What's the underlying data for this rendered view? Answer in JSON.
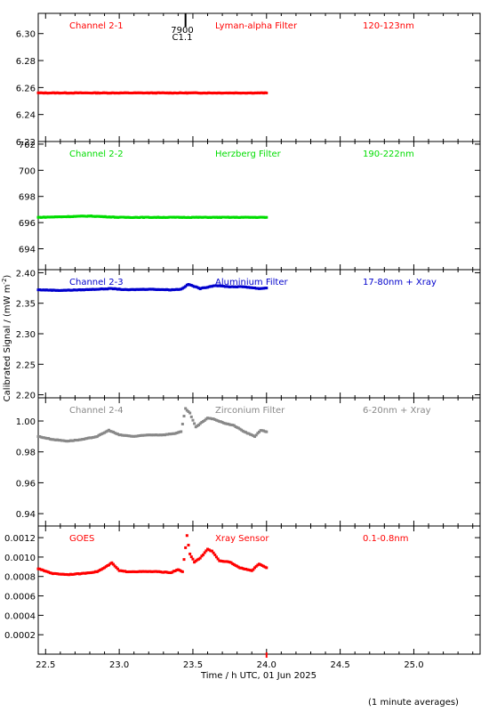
{
  "figure": {
    "ylabel": "Calibrated Signal / (mW m",
    "ylabel_sup": "-2",
    "ylabel_end": ")",
    "xlabel": "Time / h UTC, 01 Jun 2025",
    "footnote": "(1 minute averages)",
    "marker": {
      "label_top": "7900",
      "label_bottom": "C1.1",
      "x": 23.45
    }
  },
  "chart_data": [
    {
      "type": "scatter",
      "title": "Channel 2-1",
      "filter": "Lyman-alpha Filter",
      "band": "120-123nm",
      "color": "#ff0000",
      "ylim": [
        6.22,
        6.315
      ],
      "yticks": [
        "6.22",
        "6.24",
        "6.26",
        "6.28",
        "6.30"
      ],
      "xlim": [
        22.45,
        25.45
      ],
      "xticks": [
        "22.5",
        "23.0",
        "23.5",
        "24.0",
        "24.5",
        "25.0"
      ],
      "series": [
        {
          "x": [
            22.45,
            23.0,
            23.5,
            24.0
          ],
          "y": [
            6.256,
            6.256,
            6.256,
            6.256
          ]
        }
      ]
    },
    {
      "type": "scatter",
      "title": "Channel 2-2",
      "filter": "Herzberg Filter",
      "band": "190-222nm",
      "color": "#00dd00",
      "ylim": [
        692.4,
        702.2
      ],
      "yticks": [
        "694",
        "696",
        "698",
        "700",
        "702"
      ],
      "xlim": [
        22.45,
        25.45
      ],
      "xticks": [
        "22.5",
        "23.0",
        "23.5",
        "24.0",
        "24.5",
        "25.0"
      ],
      "series": [
        {
          "x": [
            22.45,
            22.8,
            23.0,
            23.4,
            23.7,
            24.0
          ],
          "y": [
            696.4,
            696.5,
            696.4,
            696.4,
            696.4,
            696.4
          ]
        }
      ]
    },
    {
      "type": "scatter",
      "title": "Channel 2-3",
      "filter": "Aluminium Filter",
      "band": "17-80nm + Xray",
      "color": "#0000cc",
      "ylim": [
        2.195,
        2.405
      ],
      "yticks": [
        "2.20",
        "2.25",
        "2.30",
        "2.35",
        "2.40"
      ],
      "xlim": [
        22.45,
        25.45
      ],
      "xticks": [
        "22.5",
        "23.0",
        "23.5",
        "24.0",
        "24.5",
        "25.0"
      ],
      "series": [
        {
          "x": [
            22.45,
            22.6,
            22.75,
            22.85,
            22.95,
            23.05,
            23.2,
            23.35,
            23.42,
            23.47,
            23.55,
            23.65,
            23.75,
            23.85,
            23.95,
            24.0
          ],
          "y": [
            2.372,
            2.371,
            2.372,
            2.373,
            2.374,
            2.372,
            2.373,
            2.372,
            2.373,
            2.381,
            2.374,
            2.379,
            2.377,
            2.377,
            2.374,
            2.375
          ]
        }
      ]
    },
    {
      "type": "scatter",
      "title": "Channel 2-4",
      "filter": "Zirconium Filter",
      "band": "6-20nm + Xray",
      "color": "#888888",
      "ylim": [
        0.932,
        1.015
      ],
      "yticks": [
        "0.94",
        "0.96",
        "0.98",
        "1.00"
      ],
      "xlim": [
        22.45,
        25.45
      ],
      "xticks": [
        "22.5",
        "23.0",
        "23.5",
        "24.0",
        "24.5",
        "25.0"
      ],
      "series": [
        {
          "x": [
            22.45,
            22.55,
            22.65,
            22.75,
            22.85,
            22.93,
            23.0,
            23.1,
            23.2,
            23.3,
            23.38,
            23.42,
            23.45,
            23.48,
            23.52,
            23.56,
            23.6,
            23.65,
            23.7,
            23.78,
            23.85,
            23.92,
            23.96,
            24.0
          ],
          "y": [
            0.99,
            0.988,
            0.987,
            0.988,
            0.99,
            0.994,
            0.991,
            0.99,
            0.991,
            0.991,
            0.992,
            0.993,
            1.008,
            1.005,
            0.996,
            0.999,
            1.002,
            1.001,
            0.999,
            0.997,
            0.993,
            0.99,
            0.994,
            0.993
          ]
        }
      ]
    },
    {
      "type": "scatter",
      "title": "GOES",
      "filter": "Xray Sensor",
      "band": "0.1-0.8nm",
      "color": "#ff0000",
      "ylim": [
        0.0,
        0.00132
      ],
      "yticks": [
        "0.0002",
        "0.0004",
        "0.0006",
        "0.0008",
        "0.0010",
        "0.0012"
      ],
      "xlim": [
        22.45,
        25.45
      ],
      "xticks": [
        "22.5",
        "23.0",
        "23.5",
        "24.0",
        "24.5",
        "25.0"
      ],
      "series": [
        {
          "x": [
            22.45,
            22.55,
            22.65,
            22.75,
            22.85,
            22.9,
            22.95,
            23.0,
            23.05,
            23.15,
            23.25,
            23.35,
            23.4,
            23.43,
            23.46,
            23.48,
            23.51,
            23.55,
            23.6,
            23.63,
            23.68,
            23.75,
            23.82,
            23.9,
            23.95,
            24.0
          ],
          "y": [
            0.00088,
            0.00083,
            0.00082,
            0.00083,
            0.00085,
            0.00089,
            0.00094,
            0.00086,
            0.00085,
            0.00085,
            0.00085,
            0.00084,
            0.00087,
            0.00085,
            0.00122,
            0.00103,
            0.00095,
            0.00099,
            0.00108,
            0.00106,
            0.00096,
            0.00095,
            0.00089,
            0.00086,
            0.00093,
            0.00089
          ]
        }
      ]
    }
  ]
}
